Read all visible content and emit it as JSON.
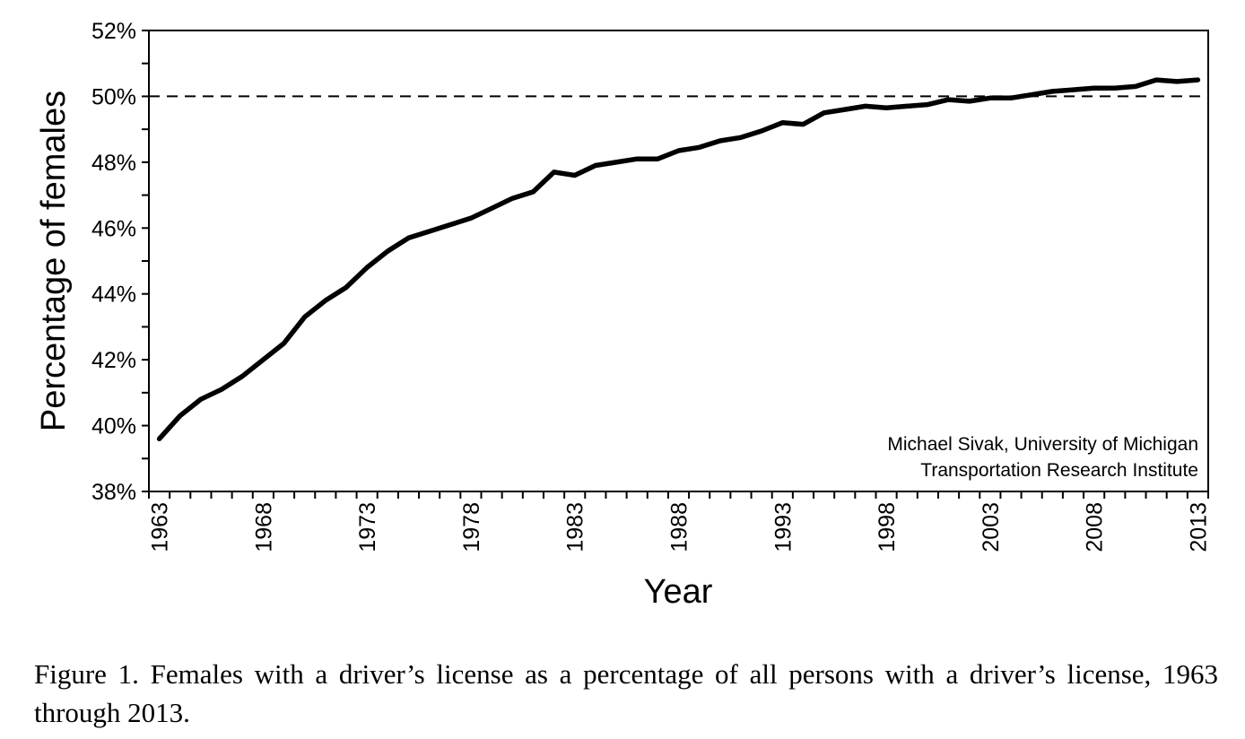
{
  "chart_data": {
    "type": "line",
    "title": "",
    "xlabel": "Year",
    "ylabel": "Percentage of females",
    "ylim": [
      38,
      52
    ],
    "xlim": [
      1963,
      2013
    ],
    "y_ticks": [
      "38%",
      "40%",
      "42%",
      "44%",
      "46%",
      "48%",
      "50%",
      "52%"
    ],
    "x_ticks": [
      "1963",
      "1968",
      "1973",
      "1978",
      "1983",
      "1988",
      "1993",
      "1998",
      "2003",
      "2008",
      "2013"
    ],
    "grid": false,
    "reference_line": {
      "y": 50,
      "style": "dashed"
    },
    "annotation": [
      "Michael Sivak, University of Michigan",
      "Transportation Research Institute"
    ],
    "series": [
      {
        "x": [
          1963,
          1964,
          1965,
          1966,
          1967,
          1968,
          1969,
          1970,
          1971,
          1972,
          1973,
          1974,
          1975,
          1976,
          1977,
          1978,
          1979,
          1980,
          1981,
          1982,
          1983,
          1984,
          1985,
          1986,
          1987,
          1988,
          1989,
          1990,
          1991,
          1992,
          1993,
          1994,
          1995,
          1996,
          1997,
          1998,
          1999,
          2000,
          2001,
          2002,
          2003,
          2004,
          2005,
          2006,
          2007,
          2008,
          2009,
          2010,
          2011,
          2012,
          2013
        ],
        "values": [
          39.6,
          40.3,
          40.8,
          41.1,
          41.5,
          42.0,
          42.5,
          43.3,
          43.8,
          44.2,
          44.8,
          45.3,
          45.7,
          45.9,
          46.1,
          46.3,
          46.6,
          46.9,
          47.1,
          47.7,
          47.6,
          47.9,
          48.0,
          48.1,
          48.1,
          48.35,
          48.45,
          48.65,
          48.75,
          48.95,
          49.2,
          49.15,
          49.5,
          49.6,
          49.7,
          49.65,
          49.7,
          49.75,
          49.9,
          49.85,
          49.95,
          49.95,
          50.05,
          50.15,
          50.2,
          50.25,
          50.25,
          50.3,
          50.5,
          50.45,
          50.5
        ]
      }
    ]
  },
  "caption": "Figure 1.  Females with a driver’s license as a percentage of all persons with a driver’s license, 1963 through 2013."
}
